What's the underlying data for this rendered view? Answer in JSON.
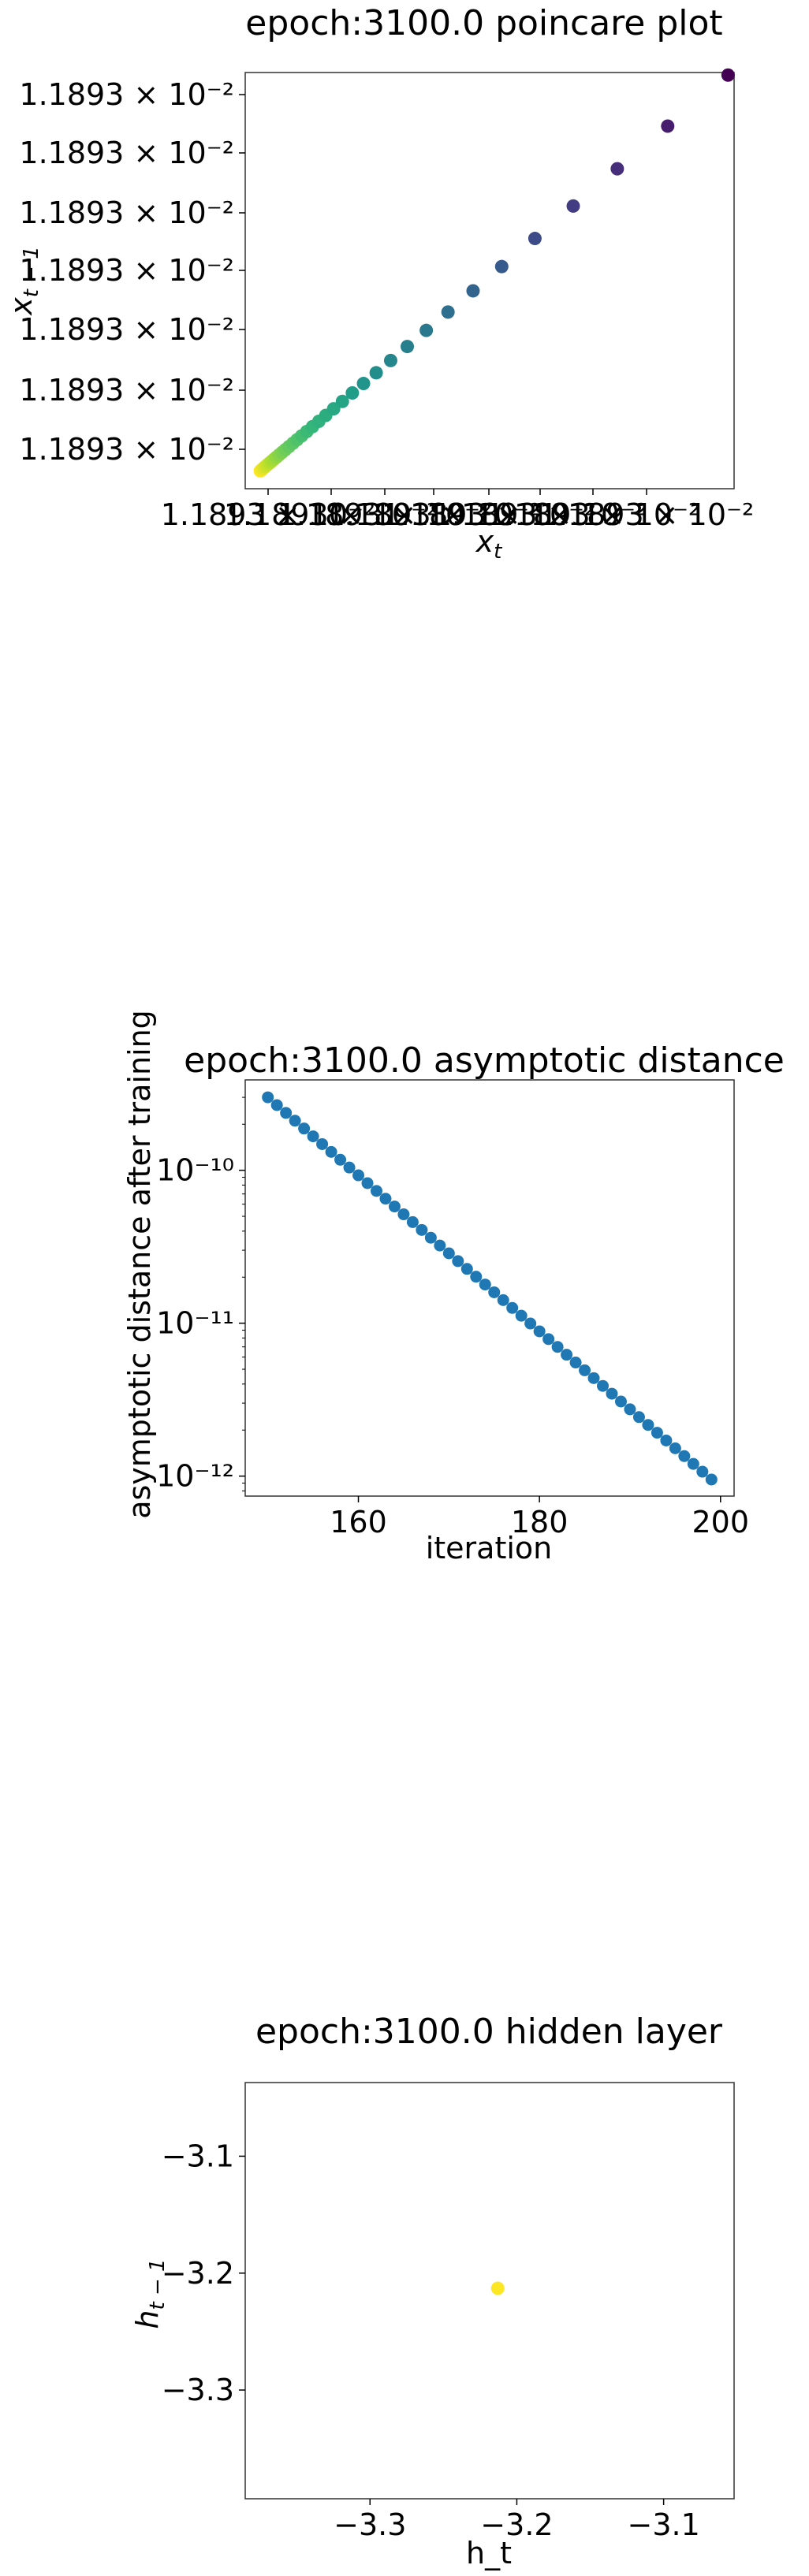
{
  "page": {
    "background": "#ffffff"
  },
  "chart_data": [
    {
      "type": "scatter",
      "title": "epoch:3100.0 poincare plot",
      "xlabel": "x_t",
      "ylabel": "x_{t-1}",
      "x_tick_labels": [
        "1.1893 × 10⁻²",
        "1.1893 × 10⁻²",
        "1.1893 × 10⁻²",
        "1.1893 × 10⁻²",
        "1.1893 × 10⁻²",
        "1.1893 × 10⁻²",
        "1.1893 × 10⁻²",
        "1.1893 × 10⁻²"
      ],
      "y_tick_labels": [
        "1.1893 × 10⁻²",
        "1.1893 × 10⁻²",
        "1.1893 × 10⁻²",
        "1.1893 × 10⁻²",
        "1.1893 × 10⁻²",
        "1.1893 × 10⁻²",
        "1.1893 × 10⁻²"
      ],
      "colormap": "viridis",
      "points": [
        {
          "x": 0.011893,
          "y": 0.011893,
          "c": 1.0
        },
        {
          "x": 0.0118930000005,
          "y": 0.0118930000005,
          "c": 0.98
        },
        {
          "x": 0.0118930000011,
          "y": 0.0118930000011,
          "c": 0.96
        },
        {
          "x": 0.0118930000017,
          "y": 0.0118930000017,
          "c": 0.94
        },
        {
          "x": 0.0118930000023,
          "y": 0.0118930000023,
          "c": 0.92
        },
        {
          "x": 0.011893000003,
          "y": 0.011893000003,
          "c": 0.9
        },
        {
          "x": 0.0118930000037,
          "y": 0.0118930000037,
          "c": 0.88
        },
        {
          "x": 0.0118930000045,
          "y": 0.0118930000045,
          "c": 0.86
        },
        {
          "x": 0.0118930000053,
          "y": 0.0118930000053,
          "c": 0.84
        },
        {
          "x": 0.0118930000062,
          "y": 0.0118930000062,
          "c": 0.82
        },
        {
          "x": 0.0118930000072,
          "y": 0.0118930000072,
          "c": 0.8
        },
        {
          "x": 0.0118930000083,
          "y": 0.0118930000083,
          "c": 0.78
        },
        {
          "x": 0.0118930000095,
          "y": 0.0118930000095,
          "c": 0.76
        },
        {
          "x": 0.0118930000108,
          "y": 0.0118930000108,
          "c": 0.74
        },
        {
          "x": 0.0118930000122,
          "y": 0.0118930000122,
          "c": 0.72
        },
        {
          "x": 0.0118930000137,
          "y": 0.0118930000137,
          "c": 0.7
        },
        {
          "x": 0.0118930000154,
          "y": 0.0118930000154,
          "c": 0.68
        },
        {
          "x": 0.0118930000173,
          "y": 0.0118930000173,
          "c": 0.66
        },
        {
          "x": 0.0118930000194,
          "y": 0.0118930000194,
          "c": 0.64
        },
        {
          "x": 0.0118930000217,
          "y": 0.0118930000217,
          "c": 0.62
        },
        {
          "x": 0.0118930000243,
          "y": 0.0118930000243,
          "c": 0.6
        },
        {
          "x": 0.0118930000272,
          "y": 0.0118930000272,
          "c": 0.58
        },
        {
          "x": 0.0118930000305,
          "y": 0.0118930000305,
          "c": 0.55
        },
        {
          "x": 0.0118930000342,
          "y": 0.0118930000342,
          "c": 0.52
        },
        {
          "x": 0.0118930000384,
          "y": 0.0118930000384,
          "c": 0.49
        },
        {
          "x": 0.0118930000432,
          "y": 0.0118930000432,
          "c": 0.46
        },
        {
          "x": 0.0118930000487,
          "y": 0.0118930000487,
          "c": 0.43
        },
        {
          "x": 0.011893000055,
          "y": 0.011893000055,
          "c": 0.4
        },
        {
          "x": 0.0118930000622,
          "y": 0.0118930000622,
          "c": 0.36
        },
        {
          "x": 0.0118930000705,
          "y": 0.0118930000705,
          "c": 0.32
        },
        {
          "x": 0.01189300008,
          "y": 0.01189300008,
          "c": 0.28
        },
        {
          "x": 0.011893000091,
          "y": 0.011893000091,
          "c": 0.23
        },
        {
          "x": 0.0118930001037,
          "y": 0.0118930001037,
          "c": 0.18
        },
        {
          "x": 0.0118930001183,
          "y": 0.0118930001183,
          "c": 0.13
        },
        {
          "x": 0.011893000135,
          "y": 0.011893000135,
          "c": 0.08
        },
        {
          "x": 0.011893000155,
          "y": 0.011893000155,
          "c": 0.0
        }
      ],
      "xlim": [
        0.011892999995,
        0.011893000157
      ],
      "ylim": [
        0.011892999993,
        0.011893000156
      ],
      "grid": false
    },
    {
      "type": "scatter",
      "title": "epoch:3100.0 asymptotic distance",
      "xlabel": "iteration",
      "ylabel": "asymptotic distance after training",
      "y_scale": "log",
      "color": "#1f77b4",
      "x_ticks": [
        160,
        180,
        200
      ],
      "y_ticks": [
        1e-12,
        1e-11,
        1e-10
      ],
      "y_tick_labels": [
        "10⁻¹²",
        "10⁻¹¹",
        "10⁻¹⁰"
      ],
      "x_start": 150,
      "x_end": 199,
      "y_start": 3e-10,
      "y_end": 9.5e-13,
      "xlim": [
        147.5,
        201.5
      ],
      "ylim": [
        7.4e-13,
        3.9e-10
      ],
      "grid": false
    },
    {
      "type": "scatter",
      "title": "epoch:3100.0 hidden layer",
      "xlabel": "h_t",
      "ylabel": "h_{t-1}",
      "x_ticks": [
        -3.3,
        -3.2,
        -3.1
      ],
      "y_ticks": [
        -3.1,
        -3.2,
        -3.3
      ],
      "x_tick_labels": [
        "−3.3",
        "−3.2",
        "−3.1"
      ],
      "y_tick_labels": [
        "−3.1",
        "−3.2",
        "−3.3"
      ],
      "points": [
        {
          "x": -3.213,
          "y": -3.213,
          "color": "#fde725"
        }
      ],
      "xlim": [
        -3.385,
        -3.052
      ],
      "ylim": [
        -3.393,
        -3.037
      ],
      "grid": false
    }
  ]
}
